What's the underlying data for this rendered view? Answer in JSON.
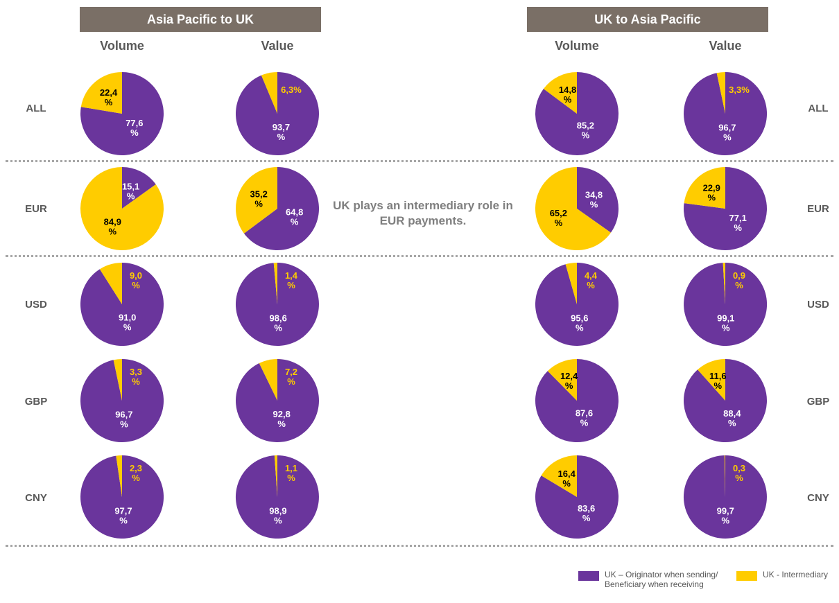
{
  "colors": {
    "originator": "#6a359c",
    "intermediary": "#ffcc00",
    "header_bg": "#7a6f66",
    "label_gray": "#595959"
  },
  "headers": [
    {
      "title": "Asia Pacific to UK"
    },
    {
      "title": "UK to Asia Pacific"
    }
  ],
  "column_labels": [
    "Volume",
    "Value",
    "Volume",
    "Value"
  ],
  "row_labels": [
    "ALL",
    "EUR",
    "USD",
    "GBP",
    "CNY"
  ],
  "note": "UK plays an intermediary role in EUR payments.",
  "legend": [
    {
      "label": "UK – Originator when sending/ Beneficiary when receiving",
      "color": "#6a359c"
    },
    {
      "label": "UK - Intermediary",
      "color": "#ffcc00"
    }
  ],
  "chart_data": {
    "type": "pie",
    "series": [
      "UK – Originator when sending/ Beneficiary when receiving",
      "UK - Intermediary"
    ],
    "pies": [
      {
        "row": "ALL",
        "direction": "Asia Pacific to UK",
        "measure": "Volume",
        "originator": 77.6,
        "intermediary": 22.4,
        "originator_label": [
          "77,6",
          "%"
        ],
        "intermediary_label": [
          "22,4",
          "%"
        ]
      },
      {
        "row": "ALL",
        "direction": "Asia Pacific to UK",
        "measure": "Value",
        "originator": 93.7,
        "intermediary": 6.3,
        "originator_label": [
          "93,7",
          "%"
        ],
        "intermediary_label": [
          "6,3%"
        ]
      },
      {
        "row": "ALL",
        "direction": "UK to Asia Pacific",
        "measure": "Volume",
        "originator": 85.2,
        "intermediary": 14.8,
        "originator_label": [
          "85,2",
          "%"
        ],
        "intermediary_label": [
          "14,8",
          "%"
        ]
      },
      {
        "row": "ALL",
        "direction": "UK to Asia Pacific",
        "measure": "Value",
        "originator": 96.7,
        "intermediary": 3.3,
        "originator_label": [
          "96,7",
          "%"
        ],
        "intermediary_label": [
          "3,3%"
        ]
      },
      {
        "row": "EUR",
        "direction": "Asia Pacific to UK",
        "measure": "Volume",
        "originator": 15.1,
        "intermediary": 84.9,
        "originator_label": [
          "15,1",
          "%"
        ],
        "intermediary_label": [
          "84,9",
          "%"
        ]
      },
      {
        "row": "EUR",
        "direction": "Asia Pacific to UK",
        "measure": "Value",
        "originator": 64.8,
        "intermediary": 35.2,
        "originator_label": [
          "64,8",
          "%"
        ],
        "intermediary_label": [
          "35,2",
          "%"
        ]
      },
      {
        "row": "EUR",
        "direction": "UK to Asia Pacific",
        "measure": "Volume",
        "originator": 34.8,
        "intermediary": 65.2,
        "originator_label": [
          "34,8",
          "%"
        ],
        "intermediary_label": [
          "65,2",
          "%"
        ]
      },
      {
        "row": "EUR",
        "direction": "UK to Asia Pacific",
        "measure": "Value",
        "originator": 77.1,
        "intermediary": 22.9,
        "originator_label": [
          "77,1",
          "%"
        ],
        "intermediary_label": [
          "22,9",
          "%"
        ]
      },
      {
        "row": "USD",
        "direction": "Asia Pacific to UK",
        "measure": "Volume",
        "originator": 91.0,
        "intermediary": 9.0,
        "originator_label": [
          "91,0",
          "%"
        ],
        "intermediary_label": [
          "9,0",
          "%"
        ]
      },
      {
        "row": "USD",
        "direction": "Asia Pacific to UK",
        "measure": "Value",
        "originator": 98.6,
        "intermediary": 1.4,
        "originator_label": [
          "98,6",
          "%"
        ],
        "intermediary_label": [
          "1,4",
          "%"
        ]
      },
      {
        "row": "USD",
        "direction": "UK to Asia Pacific",
        "measure": "Volume",
        "originator": 95.6,
        "intermediary": 4.4,
        "originator_label": [
          "95,6",
          "%"
        ],
        "intermediary_label": [
          "4,4",
          "%"
        ]
      },
      {
        "row": "USD",
        "direction": "UK to Asia Pacific",
        "measure": "Value",
        "originator": 99.1,
        "intermediary": 0.9,
        "originator_label": [
          "99,1",
          "%"
        ],
        "intermediary_label": [
          "0,9",
          "%"
        ]
      },
      {
        "row": "GBP",
        "direction": "Asia Pacific to UK",
        "measure": "Volume",
        "originator": 96.7,
        "intermediary": 3.3,
        "originator_label": [
          "96,7",
          "%"
        ],
        "intermediary_label": [
          "3,3",
          "%"
        ]
      },
      {
        "row": "GBP",
        "direction": "Asia Pacific to UK",
        "measure": "Value",
        "originator": 92.8,
        "intermediary": 7.2,
        "originator_label": [
          "92,8",
          "%"
        ],
        "intermediary_label": [
          "7,2",
          "%"
        ]
      },
      {
        "row": "GBP",
        "direction": "UK to Asia Pacific",
        "measure": "Volume",
        "originator": 87.6,
        "intermediary": 12.4,
        "originator_label": [
          "87,6",
          "%"
        ],
        "intermediary_label": [
          "12,4",
          "%"
        ]
      },
      {
        "row": "GBP",
        "direction": "UK to Asia Pacific",
        "measure": "Value",
        "originator": 88.4,
        "intermediary": 11.6,
        "originator_label": [
          "88,4",
          "%"
        ],
        "intermediary_label": [
          "11,6",
          "%"
        ]
      },
      {
        "row": "CNY",
        "direction": "Asia Pacific to UK",
        "measure": "Volume",
        "originator": 97.7,
        "intermediary": 2.3,
        "originator_label": [
          "97,7",
          "%"
        ],
        "intermediary_label": [
          "2,3",
          "%"
        ]
      },
      {
        "row": "CNY",
        "direction": "Asia Pacific to UK",
        "measure": "Value",
        "originator": 98.9,
        "intermediary": 1.1,
        "originator_label": [
          "98,9",
          "%"
        ],
        "intermediary_label": [
          "1,1",
          "%"
        ]
      },
      {
        "row": "CNY",
        "direction": "UK to Asia Pacific",
        "measure": "Volume",
        "originator": 83.6,
        "intermediary": 16.4,
        "originator_label": [
          "83,6",
          "%"
        ],
        "intermediary_label": [
          "16,4",
          "%"
        ]
      },
      {
        "row": "CNY",
        "direction": "UK to Asia Pacific",
        "measure": "Value",
        "originator": 99.7,
        "intermediary": 0.3,
        "originator_label": [
          "99,7",
          "%"
        ],
        "intermediary_label": [
          "0,3",
          "%"
        ]
      }
    ]
  }
}
